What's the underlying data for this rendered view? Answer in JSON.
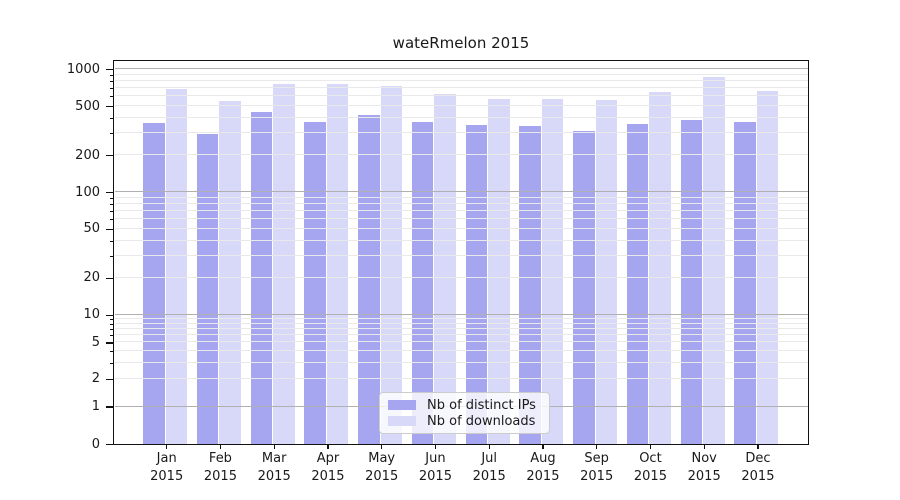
{
  "chart_data": {
    "type": "bar",
    "title": "wateRmelon 2015",
    "categories": [
      "Jan",
      "Feb",
      "Mar",
      "Apr",
      "May",
      "Jun",
      "Jul",
      "Aug",
      "Sep",
      "Oct",
      "Nov",
      "Dec"
    ],
    "category_year": "2015",
    "series": [
      {
        "name": "Nb of distinct IPs",
        "color": "#a5a5f0",
        "values": [
          365,
          300,
          455,
          375,
          430,
          375,
          355,
          345,
          315,
          360,
          390,
          375
        ]
      },
      {
        "name": "Nb of downloads",
        "color": "#d8d8f8",
        "values": [
          700,
          560,
          760,
          765,
          740,
          640,
          580,
          575,
          565,
          660,
          865,
          670
        ]
      }
    ],
    "y_axis": {
      "scale": "log",
      "tick_labels": [
        1000,
        500,
        200,
        100,
        50,
        20,
        10,
        5,
        2,
        1,
        0
      ],
      "major_gridlines": [
        1000,
        100,
        10,
        1
      ],
      "minor_gridlines": [
        900,
        800,
        700,
        600,
        500,
        400,
        300,
        200,
        90,
        80,
        70,
        60,
        50,
        40,
        30,
        20,
        9,
        8,
        7,
        6,
        5,
        4,
        3,
        2
      ],
      "ylim": [
        0,
        1200
      ]
    },
    "legend": {
      "position": "bottom-center",
      "entries": [
        "Nb of distinct IPs",
        "Nb of downloads"
      ]
    },
    "grid": true,
    "colors": {
      "bar_distinct_ips": "#a5a5f0",
      "bar_downloads": "#d8d8f8",
      "grid_major": "#b0b0b0",
      "grid_minor": "#e9e9e9",
      "spine": "#111111",
      "text": "#1a1a1a"
    }
  }
}
